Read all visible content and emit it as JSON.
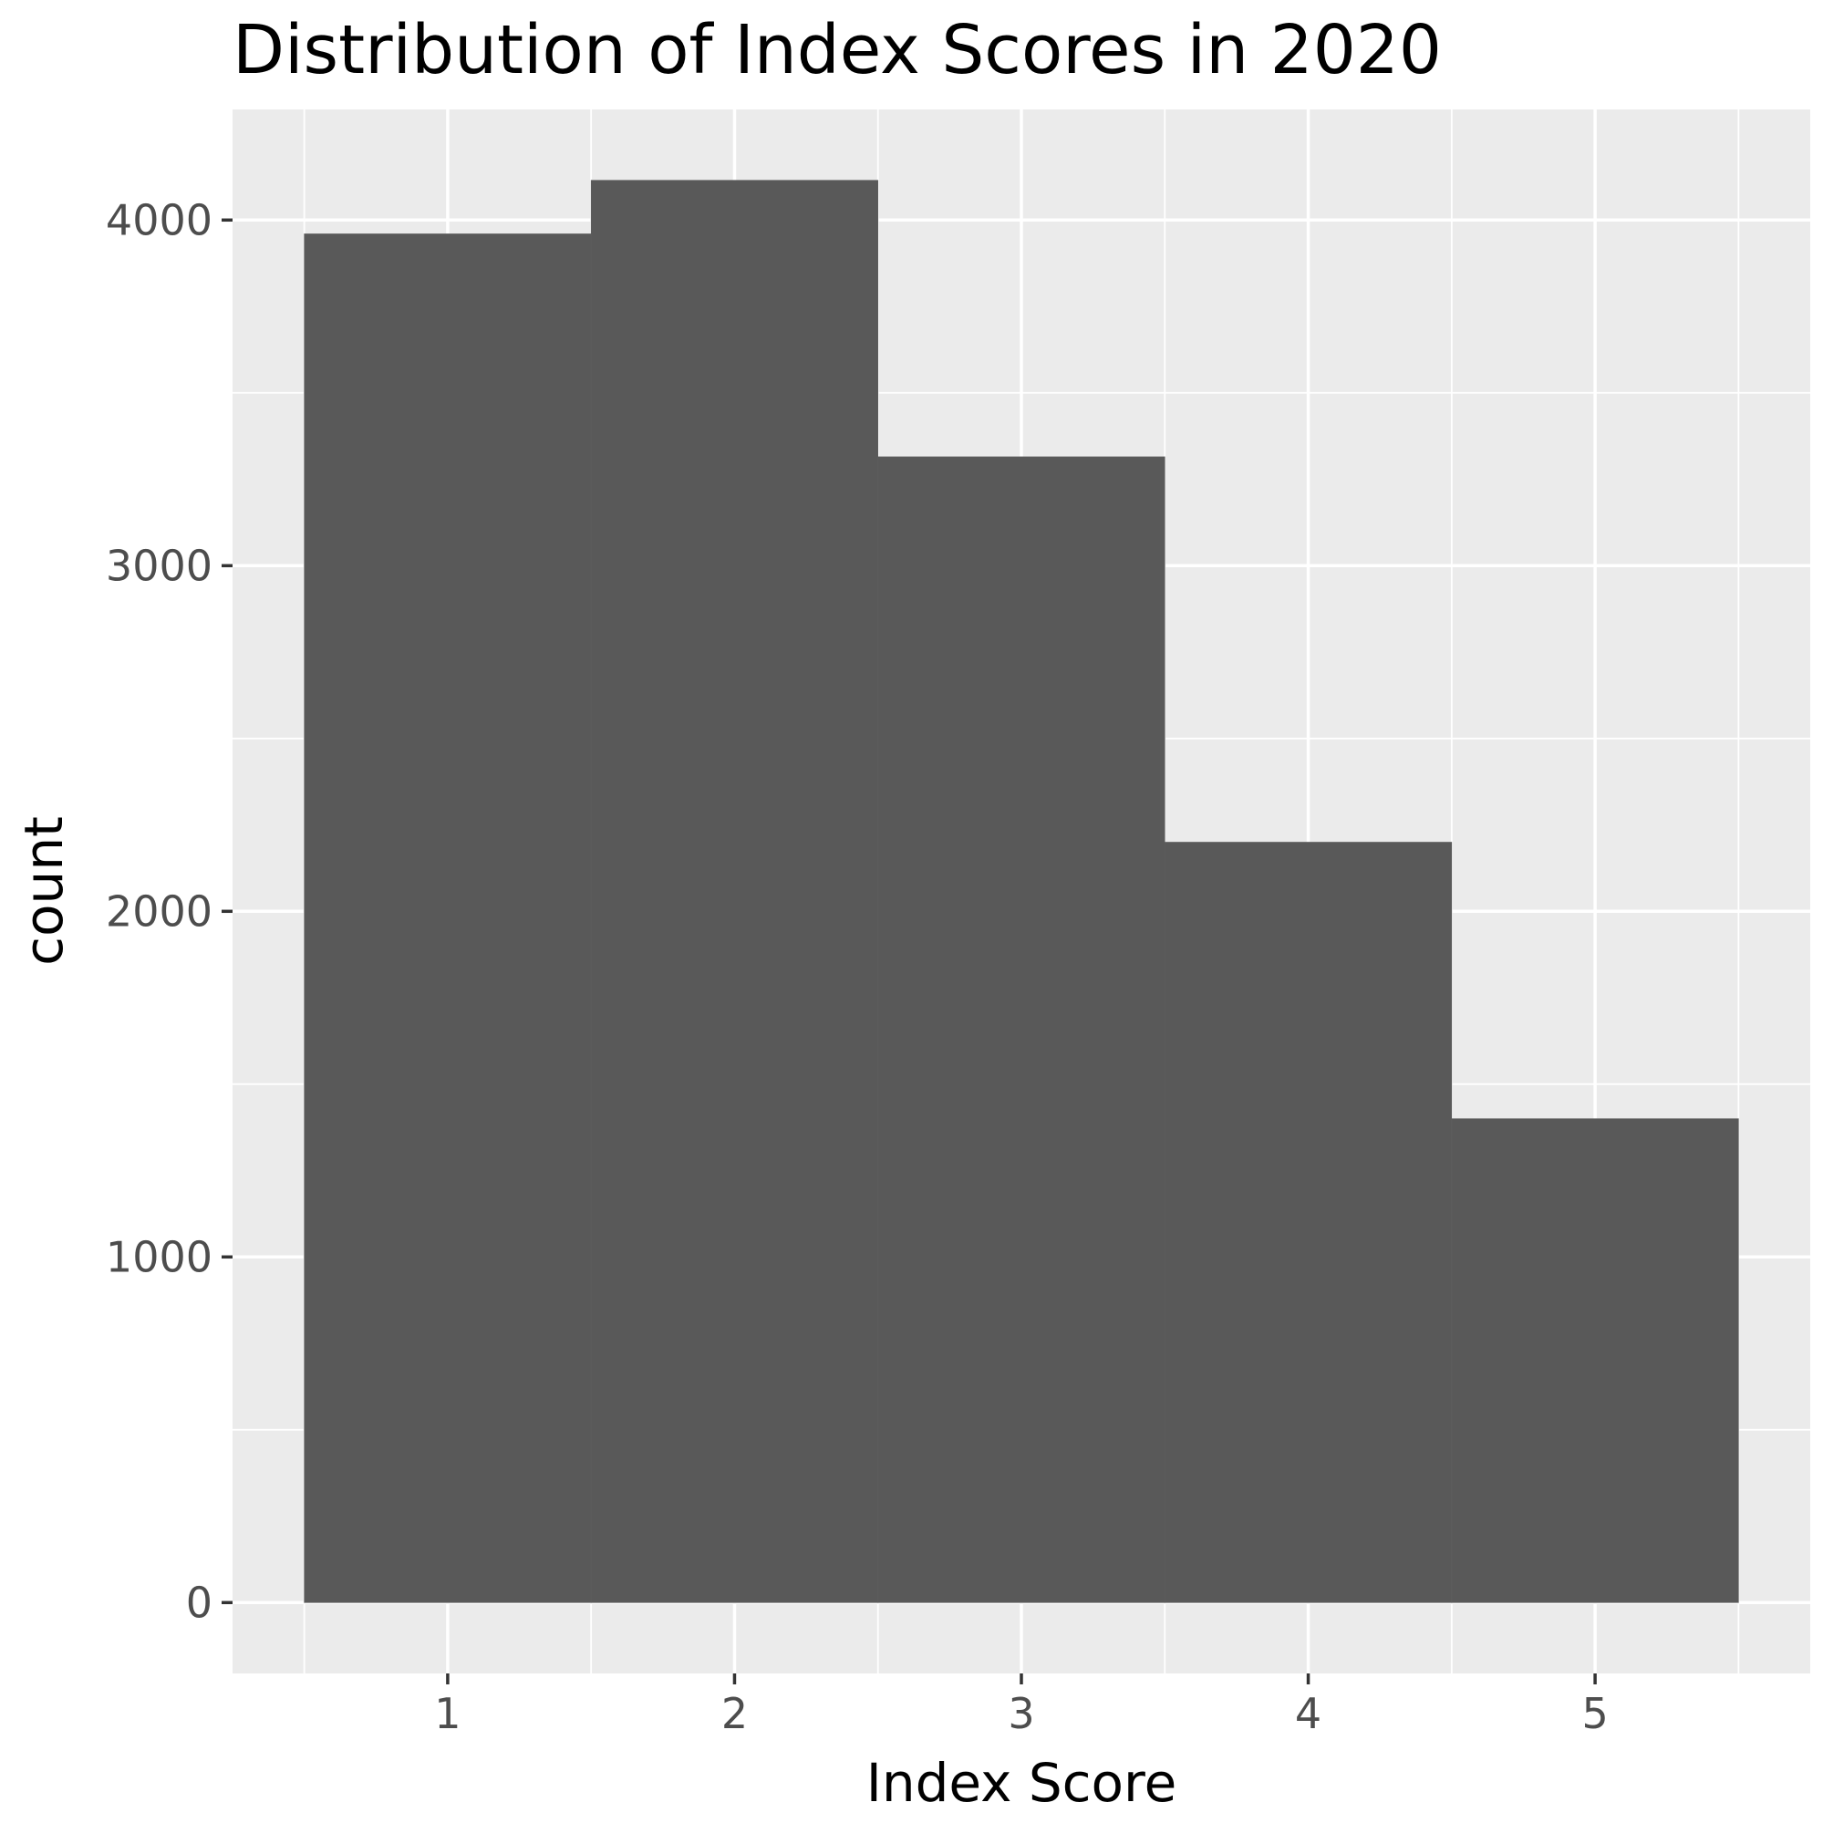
{
  "chart_data": {
    "type": "bar",
    "title": "Distribution of Index Scores in 2020",
    "xlabel": "Index Score",
    "ylabel": "count",
    "categories": [
      1,
      2,
      3,
      4,
      5
    ],
    "values": [
      3960,
      4115,
      3315,
      2200,
      1400
    ],
    "xlim": [
      0.25,
      5.75
    ],
    "ylim": [
      -205,
      4320
    ],
    "xticks": [
      "1",
      "2",
      "3",
      "4",
      "5"
    ],
    "yticks": [
      "0",
      "1000",
      "2000",
      "3000",
      "4000"
    ],
    "grid": true,
    "legend": "none",
    "colors": {
      "bar": "#595959",
      "panel": "#ebebeb",
      "grid": "#ffffff",
      "tick_text": "#4d4d4d"
    }
  }
}
